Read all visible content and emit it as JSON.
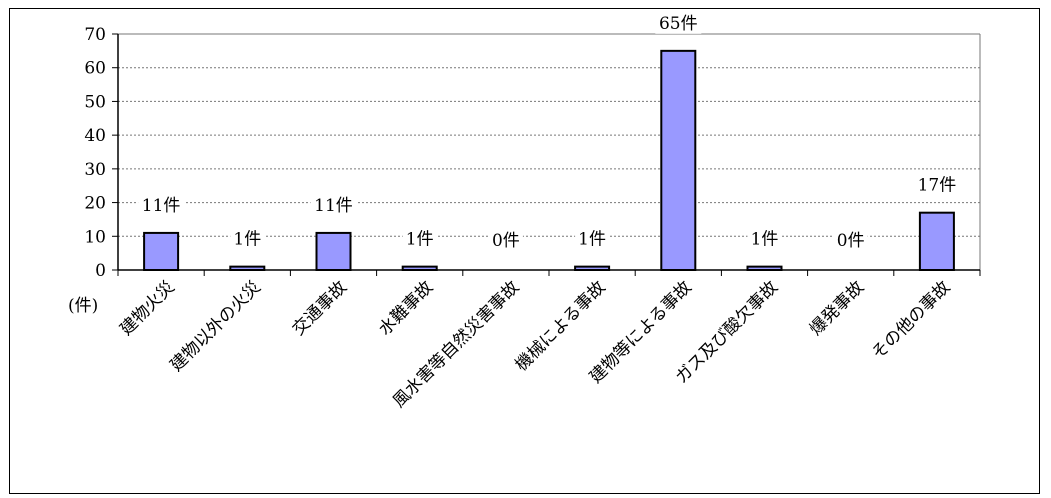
{
  "chart_data": {
    "type": "bar",
    "title": "",
    "xlabel": "",
    "ylabel": "",
    "y_unit_label": "(件)",
    "ylim": [
      0,
      70
    ],
    "yticks": [
      0,
      10,
      20,
      30,
      40,
      50,
      60,
      70
    ],
    "grid": "horizontal-dashed",
    "categories": [
      "建物火災",
      "建物以外の火災",
      "交通事故",
      "水難事故",
      "風水害等自然災害事故",
      "機械による事故",
      "建物等による事故",
      "ガス及び酸欠事故",
      "爆発事故",
      "その他の事故"
    ],
    "values": [
      11,
      1,
      11,
      1,
      0,
      1,
      65,
      1,
      0,
      17
    ],
    "data_labels": [
      "11件",
      "1件",
      "11件",
      "1件",
      "0件",
      "1件",
      "65件",
      "1件",
      "0件",
      "17件"
    ],
    "bar_color": "#9999ff",
    "bar_border_color": "#000000"
  }
}
